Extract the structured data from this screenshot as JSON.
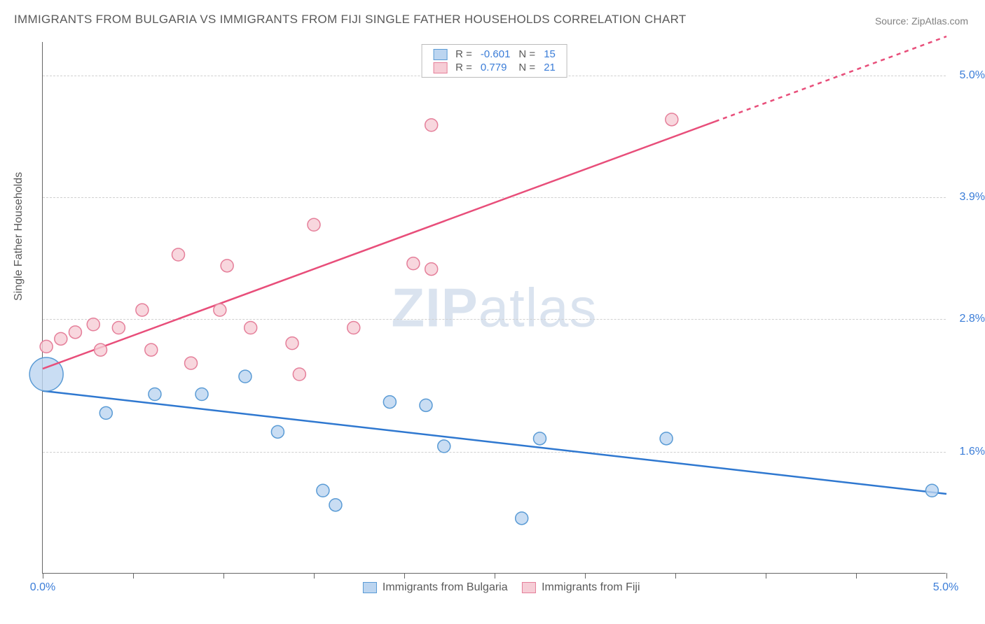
{
  "title": "IMMIGRANTS FROM BULGARIA VS IMMIGRANTS FROM FIJI SINGLE FATHER HOUSEHOLDS CORRELATION CHART",
  "source": "Source: ZipAtlas.com",
  "watermark_bold": "ZIP",
  "watermark_rest": "atlas",
  "chart": {
    "type": "scatter-with-trendlines",
    "background_color": "#ffffff",
    "grid_color": "#d0d0d0",
    "axis_color": "#666666",
    "y": {
      "label": "Single Father Households",
      "min": 0.5,
      "max": 5.3,
      "ticks": [
        1.6,
        2.8,
        3.9,
        5.0
      ],
      "tick_labels": [
        "1.6%",
        "2.8%",
        "3.9%",
        "5.0%"
      ],
      "tick_color": "#3b7dd8",
      "label_color": "#5a5a5a",
      "label_fontsize": 16
    },
    "x": {
      "min": 0.0,
      "max": 5.0,
      "start_label": "0.0%",
      "end_label": "5.0%",
      "tick_positions": [
        0.0,
        0.5,
        1.0,
        1.5,
        2.0,
        2.5,
        3.0,
        3.5,
        4.0,
        4.5,
        5.0
      ],
      "label_color": "#3b7dd8"
    },
    "series": [
      {
        "key": "bulgaria",
        "name": "Immigrants from Bulgaria",
        "R": "-0.601",
        "N": "15",
        "marker_fill": "#bcd5f0",
        "marker_stroke": "#5a9bd5",
        "marker_radius": 9,
        "line_color": "#2f78d0",
        "line_width": 2.5,
        "trend": {
          "x1": 0.0,
          "y1": 2.15,
          "x2": 5.0,
          "y2": 1.22
        },
        "points": [
          {
            "x": 0.02,
            "y": 2.3,
            "r": 24
          },
          {
            "x": 0.35,
            "y": 1.95
          },
          {
            "x": 0.62,
            "y": 2.12
          },
          {
            "x": 0.88,
            "y": 2.12
          },
          {
            "x": 1.12,
            "y": 2.28
          },
          {
            "x": 1.3,
            "y": 1.78
          },
          {
            "x": 1.55,
            "y": 1.25
          },
          {
            "x": 1.62,
            "y": 1.12
          },
          {
            "x": 1.92,
            "y": 2.05
          },
          {
            "x": 2.12,
            "y": 2.02
          },
          {
            "x": 2.22,
            "y": 1.65
          },
          {
            "x": 2.65,
            "y": 1.0
          },
          {
            "x": 2.75,
            "y": 1.72
          },
          {
            "x": 3.45,
            "y": 1.72
          },
          {
            "x": 4.92,
            "y": 1.25
          }
        ]
      },
      {
        "key": "fiji",
        "name": "Immigrants from Fiji",
        "R": "0.779",
        "N": "21",
        "marker_fill": "#f6cdd6",
        "marker_stroke": "#e57f9a",
        "marker_radius": 9,
        "line_color": "#e84e7a",
        "line_width": 2.5,
        "dash_after_x": 3.72,
        "trend": {
          "x1": 0.0,
          "y1": 2.35,
          "x2": 5.0,
          "y2": 5.35
        },
        "points": [
          {
            "x": 0.02,
            "y": 2.55
          },
          {
            "x": 0.1,
            "y": 2.62
          },
          {
            "x": 0.18,
            "y": 2.68
          },
          {
            "x": 0.28,
            "y": 2.75
          },
          {
            "x": 0.32,
            "y": 2.52
          },
          {
            "x": 0.42,
            "y": 2.72
          },
          {
            "x": 0.55,
            "y": 2.88
          },
          {
            "x": 0.6,
            "y": 2.52
          },
          {
            "x": 0.75,
            "y": 3.38
          },
          {
            "x": 0.82,
            "y": 2.4
          },
          {
            "x": 0.98,
            "y": 2.88
          },
          {
            "x": 1.02,
            "y": 3.28
          },
          {
            "x": 1.15,
            "y": 2.72
          },
          {
            "x": 1.38,
            "y": 2.58
          },
          {
            "x": 1.42,
            "y": 2.3
          },
          {
            "x": 1.5,
            "y": 3.65
          },
          {
            "x": 1.72,
            "y": 2.72
          },
          {
            "x": 2.05,
            "y": 3.3
          },
          {
            "x": 2.15,
            "y": 3.25
          },
          {
            "x": 2.15,
            "y": 4.55
          },
          {
            "x": 3.48,
            "y": 4.6
          }
        ]
      }
    ],
    "legend_top": {
      "R_label": "R =",
      "N_label": "N ="
    }
  }
}
